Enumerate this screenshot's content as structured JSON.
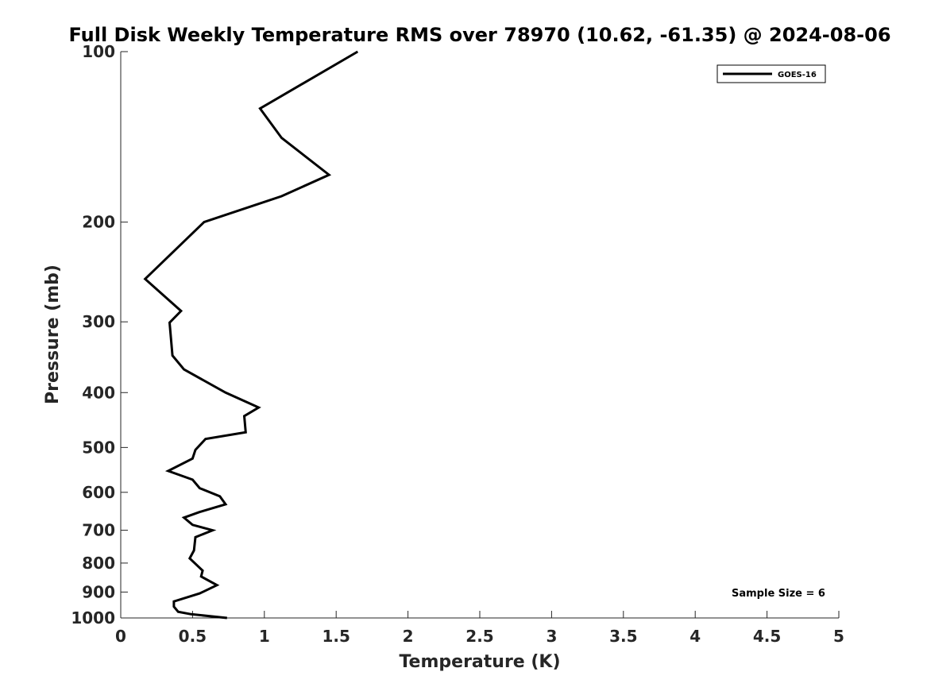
{
  "chart_data": {
    "type": "line",
    "title": "Full Disk Weekly Temperature RMS over 78970 (10.62, -61.35) @ 2024-08-06",
    "xlabel": "Temperature (K)",
    "ylabel": "Pressure (mb)",
    "xlim": [
      0,
      5
    ],
    "ylim": [
      100,
      1000
    ],
    "y_scale": "log",
    "y_reversed": true,
    "grid": false,
    "legend_position": "top-right",
    "x_ticks": [
      "0",
      "0.5",
      "1",
      "1.5",
      "2",
      "2.5",
      "3",
      "3.5",
      "4",
      "4.5",
      "5"
    ],
    "y_ticks": [
      "100",
      "200",
      "300",
      "400",
      "500",
      "600",
      "700",
      "800",
      "900",
      "1000"
    ],
    "series": [
      {
        "name": "GOES-16",
        "color": "#000000",
        "points": [
          [
            1.65,
            100
          ],
          [
            0.97,
            126
          ],
          [
            1.12,
            142
          ],
          [
            1.45,
            165
          ],
          [
            1.12,
            180
          ],
          [
            0.58,
            200
          ],
          [
            0.17,
            252
          ],
          [
            0.42,
            287
          ],
          [
            0.34,
            301
          ],
          [
            0.36,
            344
          ],
          [
            0.44,
            364
          ],
          [
            0.73,
            400
          ],
          [
            0.96,
            425
          ],
          [
            0.86,
            440
          ],
          [
            0.87,
            470
          ],
          [
            0.59,
            483
          ],
          [
            0.52,
            505
          ],
          [
            0.5,
            523
          ],
          [
            0.33,
            550
          ],
          [
            0.5,
            570
          ],
          [
            0.55,
            590
          ],
          [
            0.69,
            610
          ],
          [
            0.73,
            630
          ],
          [
            0.55,
            650
          ],
          [
            0.44,
            665
          ],
          [
            0.5,
            685
          ],
          [
            0.64,
            700
          ],
          [
            0.52,
            720
          ],
          [
            0.51,
            760
          ],
          [
            0.48,
            785
          ],
          [
            0.57,
            825
          ],
          [
            0.56,
            845
          ],
          [
            0.67,
            875
          ],
          [
            0.55,
            905
          ],
          [
            0.37,
            935
          ],
          [
            0.37,
            955
          ],
          [
            0.4,
            975
          ],
          [
            0.49,
            985
          ],
          [
            0.74,
            1000
          ]
        ]
      }
    ],
    "annotations": [
      "Sample Size = 6"
    ]
  }
}
